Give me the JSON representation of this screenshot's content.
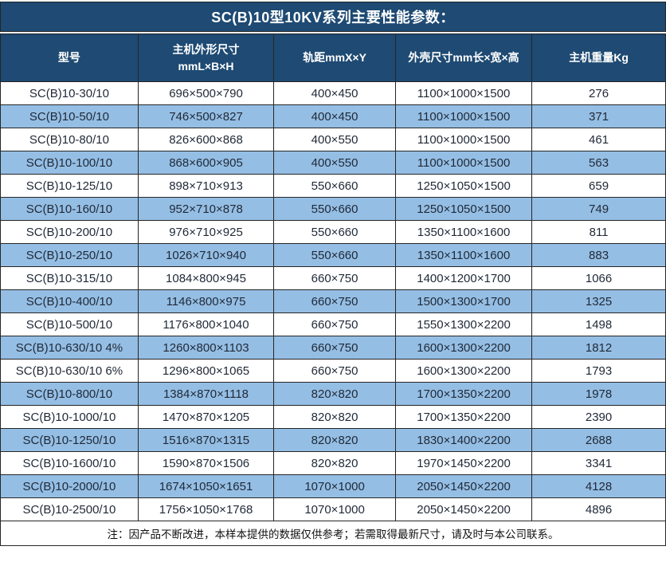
{
  "title": "SC(B)10型10KV系列主要性能参数：",
  "headers": {
    "model": "型号",
    "dims_line1": "主机外形尺寸",
    "dims_line2": "mmL×B×H",
    "gauge": "轨距mmX×Y",
    "shell": "外壳尺寸mm长×宽×高",
    "weight": "主机重量Kg"
  },
  "rows": [
    [
      "SC(B)10-30/10",
      "696×500×790",
      "400×450",
      "1100×1000×1500",
      "276"
    ],
    [
      "SC(B)10-50/10",
      "746×500×827",
      "400×450",
      "1100×1000×1500",
      "371"
    ],
    [
      "SC(B)10-80/10",
      "826×600×868",
      "400×550",
      "1100×1000×1500",
      "461"
    ],
    [
      "SC(B)10-100/10",
      "868×600×905",
      "400×550",
      "1100×1000×1500",
      "563"
    ],
    [
      "SC(B)10-125/10",
      "898×710×913",
      "550×660",
      "1250×1050×1500",
      "659"
    ],
    [
      "SC(B)10-160/10",
      "952×710×878",
      "550×660",
      "1250×1050×1500",
      "749"
    ],
    [
      "SC(B)10-200/10",
      "976×710×925",
      "550×660",
      "1350×1100×1600",
      "811"
    ],
    [
      "SC(B)10-250/10",
      "1026×710×940",
      "550×660",
      "1350×1100×1600",
      "883"
    ],
    [
      "SC(B)10-315/10",
      "1084×800×945",
      "660×750",
      "1400×1200×1700",
      "1066"
    ],
    [
      "SC(B)10-400/10",
      "1146×800×975",
      "660×750",
      "1500×1300×1700",
      "1325"
    ],
    [
      "SC(B)10-500/10",
      "1176×800×1040",
      "660×750",
      "1550×1300×2200",
      "1498"
    ],
    [
      "SC(B)10-630/10 4%",
      "1260×800×1103",
      "660×750",
      "1600×1300×2200",
      "1812"
    ],
    [
      "SC(B)10-630/10 6%",
      "1296×800×1065",
      "660×750",
      "1600×1300×2200",
      "1793"
    ],
    [
      "SC(B)10-800/10",
      "1384×870×1118",
      "820×820",
      "1700×1350×2200",
      "1978"
    ],
    [
      "SC(B)10-1000/10",
      "1470×870×1205",
      "820×820",
      "1700×1350×2200",
      "2390"
    ],
    [
      "SC(B)10-1250/10",
      "1516×870×1315",
      "820×820",
      "1830×1400×2200",
      "2688"
    ],
    [
      "SC(B)10-1600/10",
      "1590×870×1506",
      "820×820",
      "1970×1450×2200",
      "3341"
    ],
    [
      "SC(B)10-2000/10",
      "1674×1050×1651",
      "1070×1000",
      "2050×1450×2200",
      "4128"
    ],
    [
      "SC(B)10-2500/10",
      "1756×1050×1768",
      "1070×1000",
      "2050×1450×2200",
      "4896"
    ]
  ],
  "note": "注：因产品不断改进，本样本提供的数据仅供参考；若需取得最新尺寸，请及时与本公司联系。",
  "colors": {
    "header_bg": "#1e4a73",
    "header_text": "#ffffff",
    "row_alt_bg": "#95bee4",
    "row_bg": "#ffffff",
    "border": "#262626",
    "body_text": "#1f2937"
  }
}
